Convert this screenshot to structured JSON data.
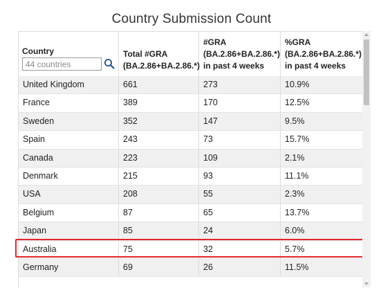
{
  "title": "Country Submission Count",
  "search": {
    "placeholder": "44 countries"
  },
  "columns": {
    "country": "Country",
    "total": [
      "Total #GRA",
      "(BA.2.86+BA.2.86.*)"
    ],
    "recent": [
      "#GRA",
      "(BA.2.86+BA.2.86.*)",
      "in past 4 weeks"
    ],
    "percent": [
      "%GRA",
      "(BA.2.86+BA.2.86.*)",
      "in past 4 weeks"
    ]
  },
  "rows": [
    {
      "country": "United Kingdom",
      "total": "661",
      "recent": "273",
      "percent": "10.9%"
    },
    {
      "country": "France",
      "total": "389",
      "recent": "170",
      "percent": "12.5%"
    },
    {
      "country": "Sweden",
      "total": "352",
      "recent": "147",
      "percent": "9.5%"
    },
    {
      "country": "Spain",
      "total": "243",
      "recent": "73",
      "percent": "15.7%"
    },
    {
      "country": "Canada",
      "total": "223",
      "recent": "109",
      "percent": "2.1%"
    },
    {
      "country": "Denmark",
      "total": "215",
      "recent": "93",
      "percent": "11.1%"
    },
    {
      "country": "USA",
      "total": "208",
      "recent": "55",
      "percent": "2.3%"
    },
    {
      "country": "Belgium",
      "total": "87",
      "recent": "65",
      "percent": "13.7%"
    },
    {
      "country": "Japan",
      "total": "85",
      "recent": "24",
      "percent": "6.0%"
    },
    {
      "country": "Australia",
      "total": "75",
      "recent": "32",
      "percent": "5.7%"
    },
    {
      "country": "Germany",
      "total": "69",
      "recent": "26",
      "percent": "11.5%"
    }
  ],
  "highlighted_row": "Australia",
  "colors": {
    "highlight": "#e3262b",
    "search_icon": "#1f4e8c",
    "stripe": "#f0f0f0"
  },
  "icons": [
    "search-icon",
    "scroll-up-icon",
    "scroll-down-icon"
  ]
}
